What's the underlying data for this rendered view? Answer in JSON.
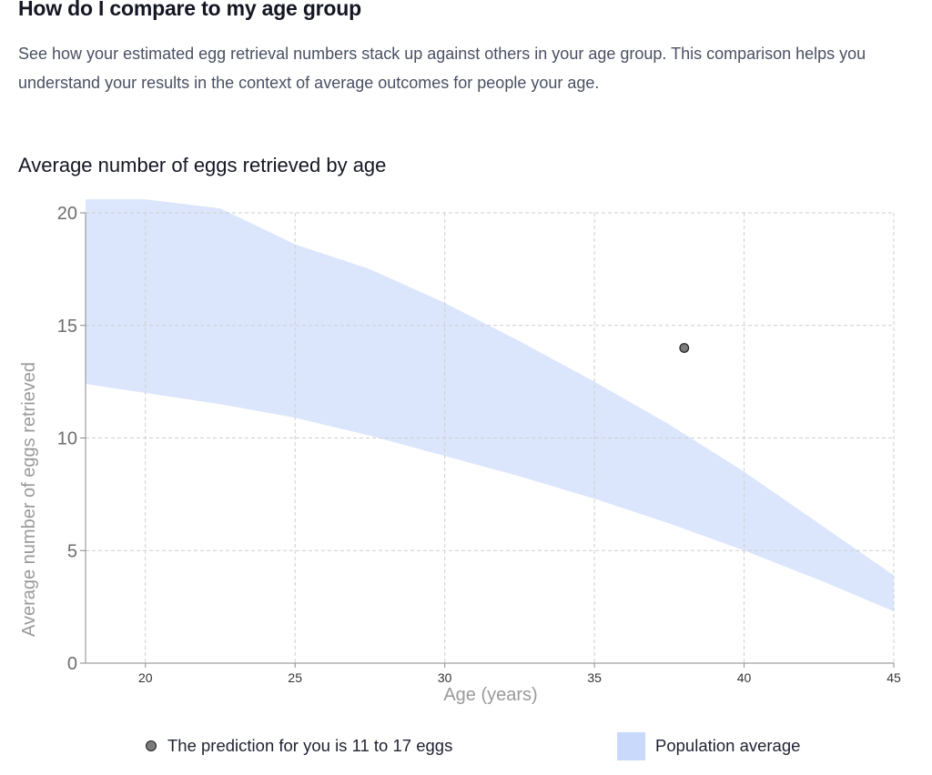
{
  "section": {
    "title": "How do I compare to my age group",
    "intro": "See how your estimated egg retrieval numbers stack up against others in your age group. This comparison helps you understand your results in the context of average outcomes for people your age."
  },
  "chart_data": {
    "type": "area",
    "title": "Average number of eggs retrieved by age",
    "xlabel": "Age (years)",
    "ylabel": "Average number of eggs retrieved",
    "xlim": [
      18,
      45
    ],
    "ylim": [
      0,
      20
    ],
    "x_ticks": [
      20,
      25,
      30,
      35,
      40,
      45
    ],
    "y_ticks": [
      0,
      5,
      10,
      15,
      20
    ],
    "grid": true,
    "band": {
      "name": "Population average",
      "color": "#dbe6fd",
      "points": [
        {
          "x": 18,
          "lower": 12.4,
          "upper": 20.6
        },
        {
          "x": 20,
          "lower": 12.0,
          "upper": 20.6
        },
        {
          "x": 22.5,
          "lower": 11.5,
          "upper": 20.2
        },
        {
          "x": 25,
          "lower": 10.9,
          "upper": 18.6
        },
        {
          "x": 27.5,
          "lower": 10.1,
          "upper": 17.5
        },
        {
          "x": 30,
          "lower": 9.2,
          "upper": 16.0
        },
        {
          "x": 32.5,
          "lower": 8.3,
          "upper": 14.3
        },
        {
          "x": 35,
          "lower": 7.3,
          "upper": 12.5
        },
        {
          "x": 37.5,
          "lower": 6.2,
          "upper": 10.6
        },
        {
          "x": 40,
          "lower": 5.0,
          "upper": 8.5
        },
        {
          "x": 42.5,
          "lower": 3.7,
          "upper": 6.2
        },
        {
          "x": 45,
          "lower": 2.3,
          "upper": 3.9
        }
      ]
    },
    "point": {
      "name": "The prediction for you is 11 to 17 eggs",
      "x": 38,
      "y": 14,
      "color": "#7b7b7b"
    },
    "legend": {
      "placement": "bottom",
      "items": [
        {
          "label": "The prediction for you is 11 to 17 eggs",
          "icon": "dot"
        },
        {
          "label": "Population average",
          "icon": "swatch",
          "color": "#c9d9fb"
        }
      ]
    }
  }
}
